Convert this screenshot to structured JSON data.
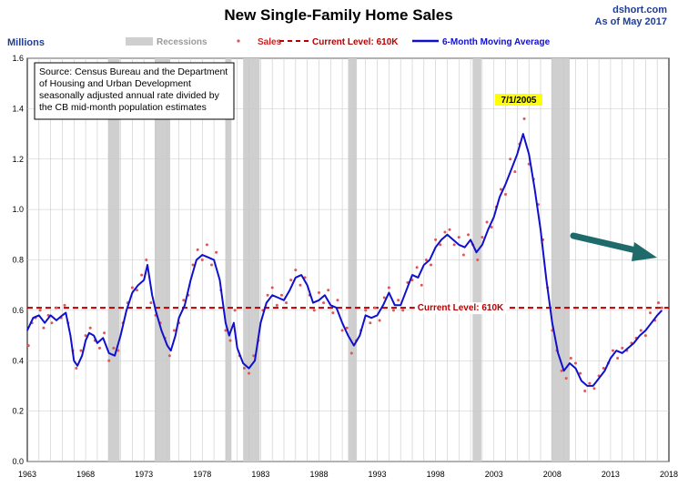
{
  "header": {
    "title": "New Single-Family Home Sales",
    "source_site": "dshort.com",
    "as_of": "As of May 2017"
  },
  "colors": {
    "recession": "#cfcfcf",
    "sales": "#e05555",
    "current": "#b80000",
    "moving_avg": "#1010cc",
    "arrow": "#1f6b6b",
    "highlight": "#ffff00"
  },
  "chart_data": {
    "type": "line",
    "ylabel": "Millions",
    "ylim": [
      0,
      1.6
    ],
    "y_ticks": [
      "0.0",
      "0.2",
      "0.4",
      "0.6",
      "0.8",
      "1.0",
      "1.2",
      "1.4",
      "1.6"
    ],
    "xlim": [
      1963,
      2018
    ],
    "x_ticks": [
      "1963",
      "1968",
      "1973",
      "1978",
      "1983",
      "1988",
      "1993",
      "1998",
      "2003",
      "2008",
      "2013",
      "2018"
    ],
    "grid": true,
    "legend_position": "top-center",
    "legend": {
      "recessions": "Recessions",
      "sales": "Sales",
      "current": "Current Level: 610K",
      "moving_avg": "6-Month Moving Average"
    },
    "current_level": 0.61,
    "current_label": "Current Level: 610K",
    "source_note": [
      "Source: Census Bureau and the Department",
      "of Housing and Urban Development",
      "seasonally adjusted annual rate divided by",
      "the CB mid-month population estimates"
    ],
    "peak_annotation": {
      "label": "7/1/2005",
      "x": 2005.5,
      "y": 1.3
    },
    "recessions": [
      [
        1969.92,
        1970.92
      ],
      [
        1973.92,
        1975.25
      ],
      [
        1980.0,
        1980.5
      ],
      [
        1981.5,
        1982.92
      ],
      [
        1990.5,
        1991.25
      ],
      [
        2001.17,
        2001.92
      ],
      [
        2007.92,
        2009.5
      ]
    ],
    "moving_average": [
      [
        1963.0,
        0.52
      ],
      [
        1963.5,
        0.57
      ],
      [
        1964.0,
        0.58
      ],
      [
        1964.5,
        0.55
      ],
      [
        1965.0,
        0.58
      ],
      [
        1965.5,
        0.56
      ],
      [
        1966.0,
        0.58
      ],
      [
        1966.3,
        0.59
      ],
      [
        1966.7,
        0.5
      ],
      [
        1967.0,
        0.4
      ],
      [
        1967.3,
        0.38
      ],
      [
        1967.7,
        0.42
      ],
      [
        1968.0,
        0.48
      ],
      [
        1968.3,
        0.51
      ],
      [
        1968.7,
        0.5
      ],
      [
        1969.0,
        0.47
      ],
      [
        1969.5,
        0.49
      ],
      [
        1970.0,
        0.43
      ],
      [
        1970.5,
        0.42
      ],
      [
        1971.0,
        0.5
      ],
      [
        1971.5,
        0.6
      ],
      [
        1972.0,
        0.67
      ],
      [
        1972.5,
        0.7
      ],
      [
        1973.0,
        0.72
      ],
      [
        1973.3,
        0.78
      ],
      [
        1973.7,
        0.66
      ],
      [
        1974.0,
        0.6
      ],
      [
        1974.5,
        0.52
      ],
      [
        1975.0,
        0.46
      ],
      [
        1975.3,
        0.44
      ],
      [
        1975.7,
        0.5
      ],
      [
        1976.0,
        0.57
      ],
      [
        1976.5,
        0.62
      ],
      [
        1977.0,
        0.72
      ],
      [
        1977.5,
        0.8
      ],
      [
        1978.0,
        0.82
      ],
      [
        1978.5,
        0.81
      ],
      [
        1979.0,
        0.8
      ],
      [
        1979.5,
        0.72
      ],
      [
        1980.0,
        0.55
      ],
      [
        1980.3,
        0.5
      ],
      [
        1980.7,
        0.55
      ],
      [
        1981.0,
        0.45
      ],
      [
        1981.5,
        0.39
      ],
      [
        1982.0,
        0.37
      ],
      [
        1982.5,
        0.4
      ],
      [
        1983.0,
        0.55
      ],
      [
        1983.5,
        0.63
      ],
      [
        1984.0,
        0.66
      ],
      [
        1984.5,
        0.65
      ],
      [
        1985.0,
        0.64
      ],
      [
        1985.5,
        0.68
      ],
      [
        1986.0,
        0.73
      ],
      [
        1986.5,
        0.74
      ],
      [
        1987.0,
        0.7
      ],
      [
        1987.5,
        0.63
      ],
      [
        1988.0,
        0.64
      ],
      [
        1988.5,
        0.66
      ],
      [
        1989.0,
        0.62
      ],
      [
        1989.5,
        0.61
      ],
      [
        1990.0,
        0.55
      ],
      [
        1990.5,
        0.5
      ],
      [
        1991.0,
        0.46
      ],
      [
        1991.5,
        0.5
      ],
      [
        1992.0,
        0.58
      ],
      [
        1992.5,
        0.57
      ],
      [
        1993.0,
        0.58
      ],
      [
        1993.5,
        0.62
      ],
      [
        1994.0,
        0.67
      ],
      [
        1994.5,
        0.62
      ],
      [
        1995.0,
        0.62
      ],
      [
        1995.5,
        0.68
      ],
      [
        1996.0,
        0.74
      ],
      [
        1996.5,
        0.73
      ],
      [
        1997.0,
        0.78
      ],
      [
        1997.5,
        0.8
      ],
      [
        1998.0,
        0.85
      ],
      [
        1998.5,
        0.88
      ],
      [
        1999.0,
        0.9
      ],
      [
        1999.5,
        0.88
      ],
      [
        2000.0,
        0.86
      ],
      [
        2000.5,
        0.85
      ],
      [
        2001.0,
        0.88
      ],
      [
        2001.5,
        0.83
      ],
      [
        2002.0,
        0.86
      ],
      [
        2002.5,
        0.92
      ],
      [
        2003.0,
        0.97
      ],
      [
        2003.5,
        1.05
      ],
      [
        2004.0,
        1.1
      ],
      [
        2004.5,
        1.16
      ],
      [
        2005.0,
        1.22
      ],
      [
        2005.5,
        1.3
      ],
      [
        2006.0,
        1.22
      ],
      [
        2006.5,
        1.08
      ],
      [
        2007.0,
        0.92
      ],
      [
        2007.5,
        0.72
      ],
      [
        2008.0,
        0.55
      ],
      [
        2008.5,
        0.43
      ],
      [
        2009.0,
        0.36
      ],
      [
        2009.5,
        0.39
      ],
      [
        2010.0,
        0.37
      ],
      [
        2010.5,
        0.32
      ],
      [
        2011.0,
        0.3
      ],
      [
        2011.5,
        0.3
      ],
      [
        2012.0,
        0.33
      ],
      [
        2012.5,
        0.36
      ],
      [
        2013.0,
        0.41
      ],
      [
        2013.5,
        0.44
      ],
      [
        2014.0,
        0.43
      ],
      [
        2014.5,
        0.45
      ],
      [
        2015.0,
        0.47
      ],
      [
        2015.5,
        0.5
      ],
      [
        2016.0,
        0.52
      ],
      [
        2016.5,
        0.55
      ],
      [
        2017.0,
        0.58
      ],
      [
        2017.4,
        0.6
      ]
    ],
    "sales": [
      [
        1963.1,
        0.46
      ],
      [
        1963.4,
        0.55
      ],
      [
        1963.7,
        0.57
      ],
      [
        1964.1,
        0.6
      ],
      [
        1964.4,
        0.53
      ],
      [
        1964.8,
        0.58
      ],
      [
        1965.1,
        0.55
      ],
      [
        1965.5,
        0.61
      ],
      [
        1965.9,
        0.57
      ],
      [
        1966.2,
        0.62
      ],
      [
        1966.5,
        0.55
      ],
      [
        1966.9,
        0.44
      ],
      [
        1967.2,
        0.37
      ],
      [
        1967.6,
        0.44
      ],
      [
        1968.0,
        0.5
      ],
      [
        1968.4,
        0.53
      ],
      [
        1968.8,
        0.48
      ],
      [
        1969.2,
        0.45
      ],
      [
        1969.6,
        0.51
      ],
      [
        1970.0,
        0.4
      ],
      [
        1970.4,
        0.45
      ],
      [
        1970.8,
        0.44
      ],
      [
        1971.2,
        0.55
      ],
      [
        1971.6,
        0.63
      ],
      [
        1972.0,
        0.69
      ],
      [
        1972.4,
        0.68
      ],
      [
        1972.8,
        0.74
      ],
      [
        1973.2,
        0.8
      ],
      [
        1973.6,
        0.63
      ],
      [
        1974.0,
        0.58
      ],
      [
        1974.4,
        0.55
      ],
      [
        1974.8,
        0.49
      ],
      [
        1975.2,
        0.42
      ],
      [
        1975.6,
        0.52
      ],
      [
        1976.0,
        0.55
      ],
      [
        1976.4,
        0.64
      ],
      [
        1976.8,
        0.66
      ],
      [
        1977.2,
        0.78
      ],
      [
        1977.6,
        0.84
      ],
      [
        1978.0,
        0.8
      ],
      [
        1978.4,
        0.86
      ],
      [
        1978.8,
        0.78
      ],
      [
        1979.2,
        0.83
      ],
      [
        1979.6,
        0.68
      ],
      [
        1980.0,
        0.52
      ],
      [
        1980.4,
        0.48
      ],
      [
        1980.8,
        0.6
      ],
      [
        1981.2,
        0.42
      ],
      [
        1981.6,
        0.37
      ],
      [
        1982.0,
        0.35
      ],
      [
        1982.4,
        0.42
      ],
      [
        1982.8,
        0.48
      ],
      [
        1983.2,
        0.6
      ],
      [
        1983.6,
        0.66
      ],
      [
        1984.0,
        0.69
      ],
      [
        1984.4,
        0.62
      ],
      [
        1984.8,
        0.66
      ],
      [
        1985.2,
        0.63
      ],
      [
        1985.6,
        0.72
      ],
      [
        1986.0,
        0.76
      ],
      [
        1986.4,
        0.7
      ],
      [
        1986.8,
        0.73
      ],
      [
        1987.2,
        0.66
      ],
      [
        1987.6,
        0.6
      ],
      [
        1988.0,
        0.67
      ],
      [
        1988.4,
        0.63
      ],
      [
        1988.8,
        0.68
      ],
      [
        1989.2,
        0.59
      ],
      [
        1989.6,
        0.64
      ],
      [
        1990.0,
        0.52
      ],
      [
        1990.4,
        0.53
      ],
      [
        1990.8,
        0.43
      ],
      [
        1991.2,
        0.48
      ],
      [
        1991.6,
        0.52
      ],
      [
        1992.0,
        0.6
      ],
      [
        1992.4,
        0.55
      ],
      [
        1992.8,
        0.61
      ],
      [
        1993.2,
        0.56
      ],
      [
        1993.6,
        0.65
      ],
      [
        1994.0,
        0.69
      ],
      [
        1994.4,
        0.6
      ],
      [
        1994.8,
        0.64
      ],
      [
        1995.2,
        0.6
      ],
      [
        1995.6,
        0.71
      ],
      [
        1996.0,
        0.72
      ],
      [
        1996.4,
        0.77
      ],
      [
        1996.8,
        0.7
      ],
      [
        1997.2,
        0.8
      ],
      [
        1997.6,
        0.78
      ],
      [
        1998.0,
        0.88
      ],
      [
        1998.4,
        0.86
      ],
      [
        1998.8,
        0.91
      ],
      [
        1999.2,
        0.92
      ],
      [
        1999.6,
        0.86
      ],
      [
        2000.0,
        0.89
      ],
      [
        2000.4,
        0.82
      ],
      [
        2000.8,
        0.9
      ],
      [
        2001.2,
        0.86
      ],
      [
        2001.6,
        0.8
      ],
      [
        2002.0,
        0.89
      ],
      [
        2002.4,
        0.95
      ],
      [
        2002.8,
        0.93
      ],
      [
        2003.2,
        1.01
      ],
      [
        2003.6,
        1.08
      ],
      [
        2004.0,
        1.06
      ],
      [
        2004.4,
        1.2
      ],
      [
        2004.8,
        1.15
      ],
      [
        2005.2,
        1.26
      ],
      [
        2005.6,
        1.36
      ],
      [
        2006.0,
        1.18
      ],
      [
        2006.4,
        1.12
      ],
      [
        2006.8,
        1.02
      ],
      [
        2007.2,
        0.88
      ],
      [
        2007.6,
        0.69
      ],
      [
        2008.0,
        0.52
      ],
      [
        2008.4,
        0.44
      ],
      [
        2008.8,
        0.36
      ],
      [
        2009.2,
        0.33
      ],
      [
        2009.6,
        0.41
      ],
      [
        2010.0,
        0.39
      ],
      [
        2010.4,
        0.35
      ],
      [
        2010.8,
        0.28
      ],
      [
        2011.2,
        0.31
      ],
      [
        2011.6,
        0.29
      ],
      [
        2012.0,
        0.34
      ],
      [
        2012.4,
        0.37
      ],
      [
        2012.8,
        0.39
      ],
      [
        2013.2,
        0.44
      ],
      [
        2013.6,
        0.41
      ],
      [
        2014.0,
        0.45
      ],
      [
        2014.4,
        0.44
      ],
      [
        2014.8,
        0.47
      ],
      [
        2015.2,
        0.49
      ],
      [
        2015.6,
        0.52
      ],
      [
        2016.0,
        0.5
      ],
      [
        2016.4,
        0.59
      ],
      [
        2016.8,
        0.56
      ],
      [
        2017.1,
        0.63
      ],
      [
        2017.4,
        0.61
      ]
    ]
  }
}
